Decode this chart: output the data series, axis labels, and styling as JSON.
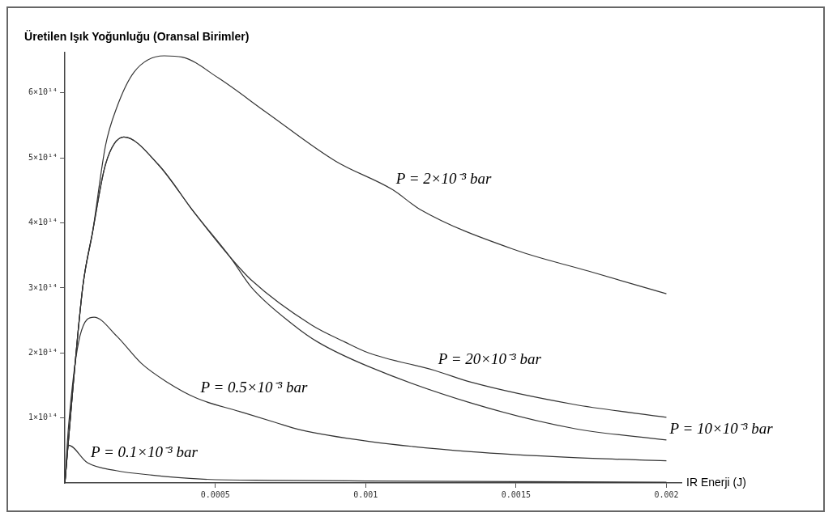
{
  "chart_data": {
    "type": "line",
    "ylabel": "Üretilen Işık Yoğunluğu (Oransal Birimler)",
    "xlabel": "IR Enerji (J)",
    "xlim": [
      0,
      0.00205
    ],
    "xticks": [
      0.0005,
      0.001,
      0.0015,
      0.002
    ],
    "ylim": [
      0,
      662000000000000.0
    ],
    "yticks": [
      {
        "value": 100000000000000.0,
        "label": "1×10¹⁴"
      },
      {
        "value": 200000000000000.0,
        "label": "2×10¹⁴"
      },
      {
        "value": 300000000000000.0,
        "label": "3×10¹⁴"
      },
      {
        "value": 400000000000000.0,
        "label": "4×10¹⁴"
      },
      {
        "value": 500000000000000.0,
        "label": "5×10¹⁴"
      },
      {
        "value": 600000000000000.0,
        "label": "6×10¹⁴"
      }
    ],
    "grid": false,
    "legend": false,
    "series": [
      {
        "color": "#333333",
        "x": [
          0,
          2.7e-05,
          6e-05,
          9.2e-05,
          0.000135,
          0.000172,
          0.00023,
          0.00033,
          0.00039,
          0.00051,
          0.00067,
          0.0009,
          0.00109,
          0.00118,
          0.0015,
          0.00174,
          0.002
        ],
        "values": [
          0,
          148000000000000.0,
          304000000000000.0,
          386000000000000.0,
          519000000000000.0,
          577000000000000.0,
          632000000000000.0,
          657000000000000.0,
          655000000000000.0,
          623000000000000.0,
          570000000000000.0,
          495000000000000.0,
          451000000000000.0,
          421000000000000.0,
          358000000000000.0,
          326000000000000.0,
          291000000000000.0
        ]
      },
      {
        "color": "#333333",
        "x": [
          0,
          2.7e-05,
          6e-05,
          9.2e-05,
          0.000135,
          0.000196,
          0.00031,
          0.00043,
          0.00055,
          0.00062,
          0.00082,
          0.00093,
          0.00101,
          0.00123,
          0.00135,
          0.00169,
          0.002
        ],
        "values": [
          0,
          148000000000000.0,
          304000000000000.0,
          386000000000000.0,
          490000000000000.0,
          532000000000000.0,
          490000000000000.0,
          416000000000000.0,
          347000000000000.0,
          312000000000000.0,
          243000000000000.0,
          217000000000000.0,
          200000000000000.0,
          173000000000000.0,
          155000000000000.0,
          121000000000000.0,
          101000000000000.0
        ]
      },
      {
        "color": "#333333",
        "x": [
          0,
          2.7e-05,
          6e-05,
          9.2e-05,
          0.000135,
          0.000196,
          0.00031,
          0.00043,
          0.00055,
          0.00062,
          0.00076,
          0.00084,
          0.00101,
          0.00135,
          0.00169,
          0.002
        ],
        "values": [
          0,
          148000000000000.0,
          304000000000000.0,
          386000000000000.0,
          490000000000000.0,
          532000000000000.0,
          490000000000000.0,
          416000000000000.0,
          347000000000000.0,
          301000000000000.0,
          243000000000000.0,
          217000000000000.0,
          179000000000000.0,
          123000000000000.0,
          84000000000000.0,
          66000000000000.0
        ]
      },
      {
        "color": "#333333",
        "x": [
          0,
          1.2e-05,
          5e-05,
          9.7e-05,
          0.000172,
          0.000254,
          0.00034,
          0.00044,
          0.00058,
          0.0007,
          0.00078,
          0.00101,
          0.00135,
          0.00169,
          0.002
        ],
        "values": [
          0,
          87000000000000.0,
          226000000000000.0,
          255000000000000.0,
          226000000000000.0,
          184000000000000.0,
          155000000000000.0,
          130000000000000.0,
          110000000000000.0,
          93000000000000.0,
          82000000000000.0,
          64000000000000.0,
          48000000000000.0,
          39000000000000.0,
          34000000000000.0
        ]
      },
      {
        "color": "#333333",
        "x": [
          0,
          1.2e-05,
          7.5e-05,
          0.00017,
          0.00029,
          0.00045,
          0.0007,
          0.001,
          0.0015,
          0.002
        ],
        "values": [
          0,
          58000000000000.0,
          31000000000000.0,
          19000000000000.0,
          12000000000000.0,
          6000000000000.0,
          4000000000000.0,
          3000000000000.0,
          2000000000000.0,
          1000000000000.0
        ]
      }
    ],
    "annotations": [
      {
        "text": "P = 2×10⁻³ bar",
        "x": 0.00109,
        "y": 451000000000000.0
      },
      {
        "text": "P = 20×10⁻³ bar",
        "x": 0.00123,
        "y": 173000000000000.0
      },
      {
        "text": "P = 10×10⁻³ bar",
        "x": 0.002,
        "y": 66000000000000.0
      },
      {
        "text": "P = 0.5×10⁻³ bar",
        "x": 0.00044,
        "y": 130000000000000.0
      },
      {
        "text": "P = 0.1×10⁻³ bar",
        "x": 7.5e-05,
        "y": 31000000000000.0
      }
    ]
  }
}
